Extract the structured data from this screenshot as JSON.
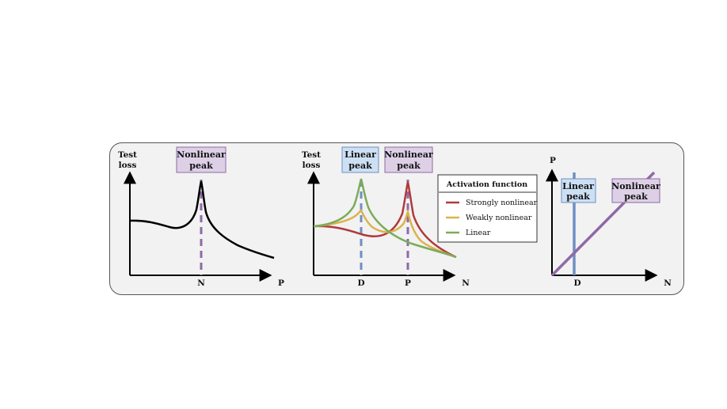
{
  "colors": {
    "background": "#ffffff",
    "panel_fill": "#f2f2f2",
    "axis": "#000000",
    "curve_single": "#000000",
    "strongly_nonlinear": "#b03a3a",
    "weakly_nonlinear": "#dbb34d",
    "linear": "#7cab5a",
    "linear_peak": "#6f8fc4",
    "nonlinear_peak": "#8e6aa6",
    "linear_box": "#cde0f3",
    "nonlinear_box": "#ddd0e6"
  },
  "panel1": {
    "ylabel_line1": "Test",
    "ylabel_line2": "loss",
    "xlabel": "P",
    "tick": "N",
    "peak_box_line1": "Nonlinear",
    "peak_box_line2": "peak"
  },
  "panel2": {
    "ylabel_line1": "Test",
    "ylabel_line2": "loss",
    "xlabel": "N",
    "tick_d": "D",
    "tick_p": "P",
    "linear_box_line1": "Linear",
    "linear_box_line2": "peak",
    "nonlinear_box_line1": "Nonlinear",
    "nonlinear_box_line2": "peak",
    "legend": {
      "title": "Activation function",
      "items": [
        "Strongly nonlinear",
        "Weakly nonlinear",
        "Linear"
      ]
    }
  },
  "panel3": {
    "ylabel": "P",
    "xlabel": "N",
    "tick": "D",
    "linear_box_line1": "Linear",
    "linear_box_line2": "peak",
    "nonlinear_box_line1": "Nonlinear",
    "nonlinear_box_line2": "peak"
  }
}
